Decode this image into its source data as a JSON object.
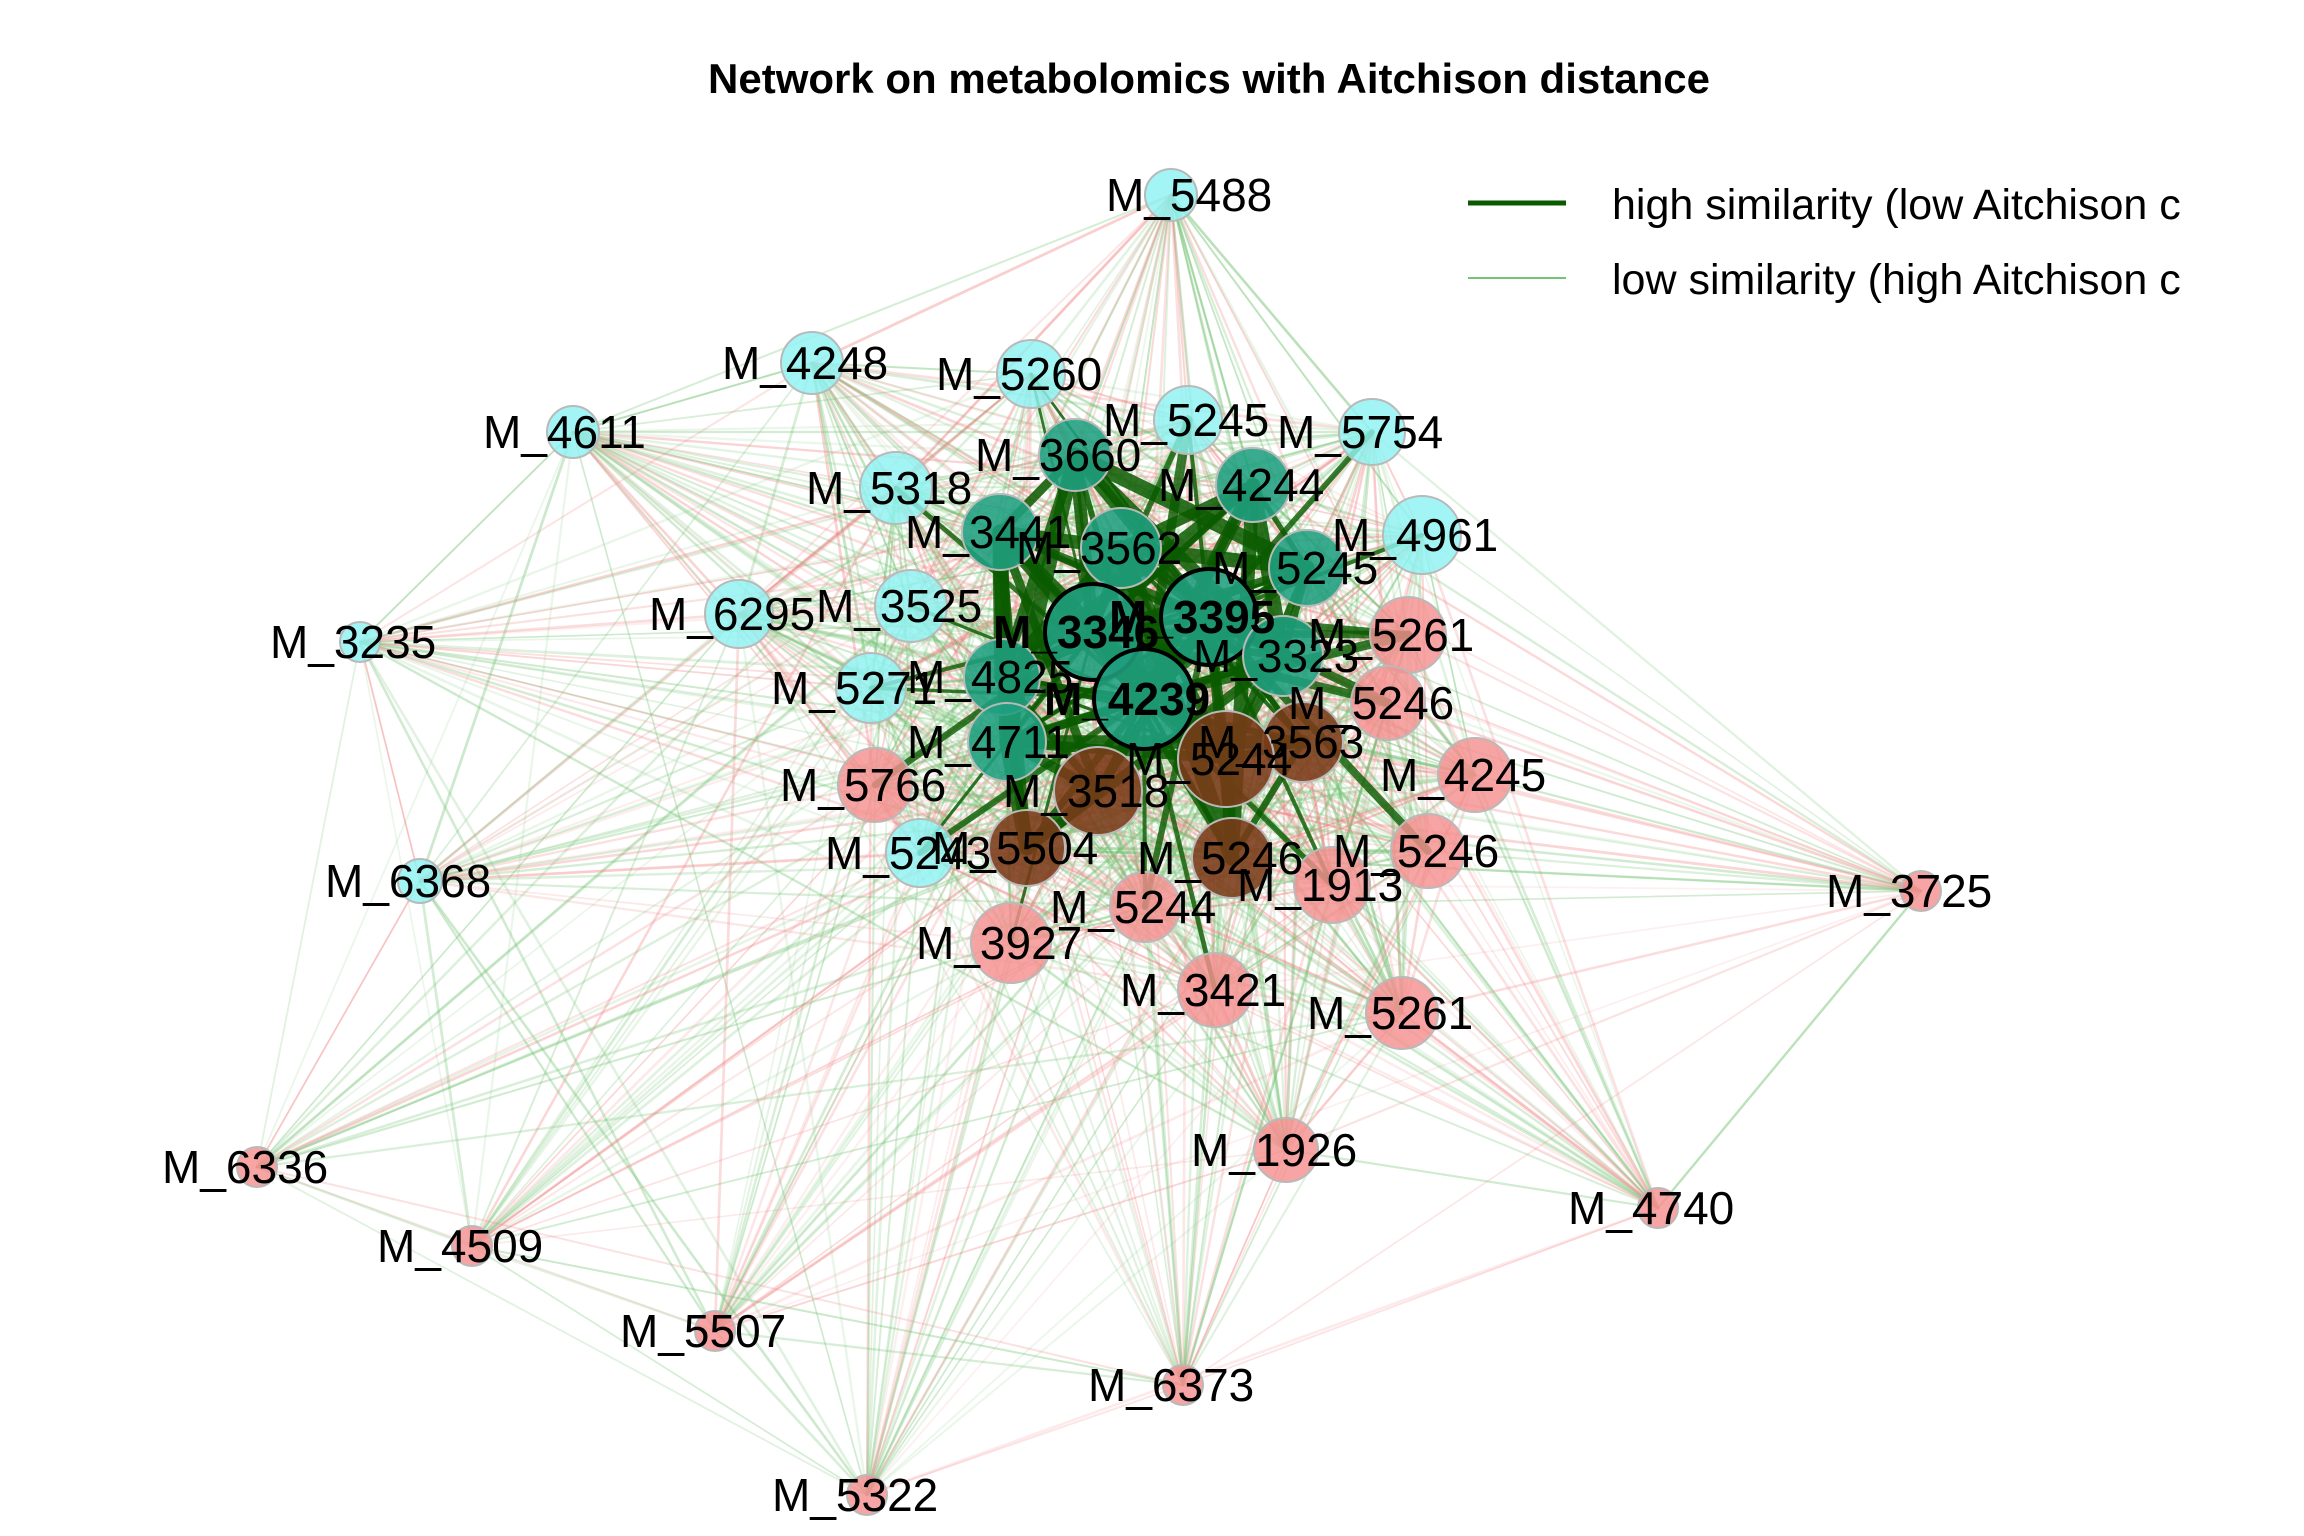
{
  "figure": {
    "title": "Network on metabolomics with Aitchison distance"
  },
  "legend": {
    "items": [
      {
        "label": "high similarity (low Aitchison c",
        "color": "#0a5a00",
        "style": "thick"
      },
      {
        "label": "low similarity (high Aitchison c",
        "color": "#74c476",
        "style": "thin"
      }
    ]
  },
  "colors": {
    "group_a": "#8ff3f3",
    "group_b": "#f59090",
    "hub_a": "#1f9f80",
    "hub_b": "#7a3a18",
    "edge_strong": "#0a5a00",
    "edge_positive": "#6bbf6b",
    "edge_negative": "#f08080"
  },
  "nodes": [
    {
      "id": "M_5488",
      "group": "a",
      "hub": false
    },
    {
      "id": "M_4248",
      "group": "a",
      "hub": false
    },
    {
      "id": "M_5260",
      "group": "a",
      "hub": false
    },
    {
      "id": "M_4611",
      "group": "a",
      "hub": false
    },
    {
      "id": "M_5245",
      "group": "a",
      "hub": false
    },
    {
      "id": "M_5754",
      "group": "a",
      "hub": false
    },
    {
      "id": "M_3660",
      "group": "a",
      "hub": true
    },
    {
      "id": "M_5318",
      "group": "a",
      "hub": false
    },
    {
      "id": "M_4244",
      "group": "a",
      "hub": true
    },
    {
      "id": "M_3441",
      "group": "a",
      "hub": true
    },
    {
      "id": "M_3562",
      "group": "a",
      "hub": true
    },
    {
      "id": "M_4961",
      "group": "a",
      "hub": false
    },
    {
      "id": "M_5245",
      "group": "a",
      "hub": true
    },
    {
      "id": "M_3525",
      "group": "a",
      "hub": false
    },
    {
      "id": "M_6295",
      "group": "a",
      "hub": false
    },
    {
      "id": "M_3235",
      "group": "a",
      "hub": false
    },
    {
      "id": "M_3346",
      "group": "a",
      "hub": true
    },
    {
      "id": "M_3395",
      "group": "a",
      "hub": true
    },
    {
      "id": "M_5261",
      "group": "b",
      "hub": false
    },
    {
      "id": "M_3323",
      "group": "a",
      "hub": true
    },
    {
      "id": "M_4825",
      "group": "a",
      "hub": true
    },
    {
      "id": "M_5271",
      "group": "a",
      "hub": false
    },
    {
      "id": "M_4239",
      "group": "a",
      "hub": true
    },
    {
      "id": "M_5246",
      "group": "b",
      "hub": false
    },
    {
      "id": "M_4711",
      "group": "a",
      "hub": true
    },
    {
      "id": "M_3563",
      "group": "b",
      "hub": true
    },
    {
      "id": "M_5244",
      "group": "b",
      "hub": true
    },
    {
      "id": "M_4245",
      "group": "b",
      "hub": false
    },
    {
      "id": "M_5766",
      "group": "b",
      "hub": false
    },
    {
      "id": "M_3518",
      "group": "b",
      "hub": true
    },
    {
      "id": "M_6368",
      "group": "a",
      "hub": false
    },
    {
      "id": "M_5243",
      "group": "a",
      "hub": false
    },
    {
      "id": "M_5504",
      "group": "b",
      "hub": true
    },
    {
      "id": "M_5246",
      "group": "b",
      "hub": true
    },
    {
      "id": "M_5246",
      "group": "b",
      "hub": false
    },
    {
      "id": "M_1913",
      "group": "b",
      "hub": false
    },
    {
      "id": "M_3725",
      "group": "b",
      "hub": false
    },
    {
      "id": "M_5244",
      "group": "b",
      "hub": false
    },
    {
      "id": "M_3927",
      "group": "b",
      "hub": false
    },
    {
      "id": "M_3421",
      "group": "b",
      "hub": false
    },
    {
      "id": "M_5261",
      "group": "b",
      "hub": false
    },
    {
      "id": "M_1926",
      "group": "b",
      "hub": false
    },
    {
      "id": "M_6336",
      "group": "b",
      "hub": false
    },
    {
      "id": "M_4740",
      "group": "b",
      "hub": false
    },
    {
      "id": "M_4509",
      "group": "b",
      "hub": false
    },
    {
      "id": "M_5507",
      "group": "b",
      "hub": false
    },
    {
      "id": "M_6373",
      "group": "b",
      "hub": false
    },
    {
      "id": "M_5322",
      "group": "b",
      "hub": false
    }
  ]
}
